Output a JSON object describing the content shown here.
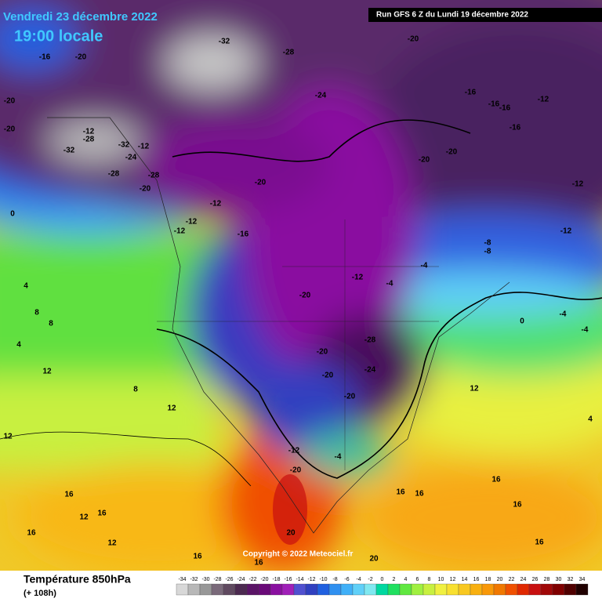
{
  "header": {
    "date": "Vendredi 23 décembre 2022",
    "time": "19:00 locale",
    "run": "Run GFS 6 Z du Lundi 19 décembre 2022"
  },
  "footer": {
    "title": "Température 850hPa",
    "lead": "(+ 108h)",
    "copyright": "Copyright © 2022 Meteociel.fr"
  },
  "legend": {
    "ticks": [
      -34,
      -32,
      -30,
      -28,
      -26,
      -24,
      -22,
      -20,
      -18,
      -16,
      -14,
      -12,
      -10,
      -8,
      -6,
      -4,
      -2,
      0,
      2,
      4,
      6,
      8,
      10,
      12,
      14,
      16,
      18,
      20,
      22,
      24,
      26,
      28,
      30,
      32,
      34
    ],
    "colors": [
      "#d8d8d8",
      "#b8b8b8",
      "#989898",
      "#7a6a7a",
      "#604a60",
      "#4c2a50",
      "#5a1466",
      "#6a0a78",
      "#8a10a0",
      "#a020b8",
      "#5050d0",
      "#3040c0",
      "#2060e0",
      "#3090f0",
      "#40b0f8",
      "#60d0f8",
      "#80e8f0",
      "#00d8a0",
      "#20e060",
      "#60e840",
      "#a0f040",
      "#c8f040",
      "#f0f040",
      "#f8e030",
      "#f8c820",
      "#f8b010",
      "#f89808",
      "#f07800",
      "#f05000",
      "#e02800",
      "#c81010",
      "#a00808",
      "#800000",
      "#500000",
      "#200000"
    ]
  },
  "map": {
    "labels": [
      -20,
      -16,
      -20,
      -32,
      -28,
      -24,
      -20,
      -20,
      -16,
      -16,
      -16,
      -12,
      -16,
      -12,
      -28,
      -32,
      -12,
      -32,
      -24,
      -28,
      -28,
      -20,
      -20,
      -20,
      -20,
      -12,
      0,
      -12,
      -16,
      -12,
      -12,
      -12,
      -8,
      -8,
      -4,
      -12,
      -4,
      -20,
      0,
      -4,
      -4,
      4,
      8,
      8,
      4,
      -28,
      -24,
      -20,
      -20,
      -20,
      12,
      8,
      12,
      12,
      12,
      4,
      -12,
      -20,
      -4,
      16,
      16,
      16,
      16,
      16,
      16,
      16,
      20,
      16,
      16,
      16,
      20,
      12,
      12
    ]
  }
}
